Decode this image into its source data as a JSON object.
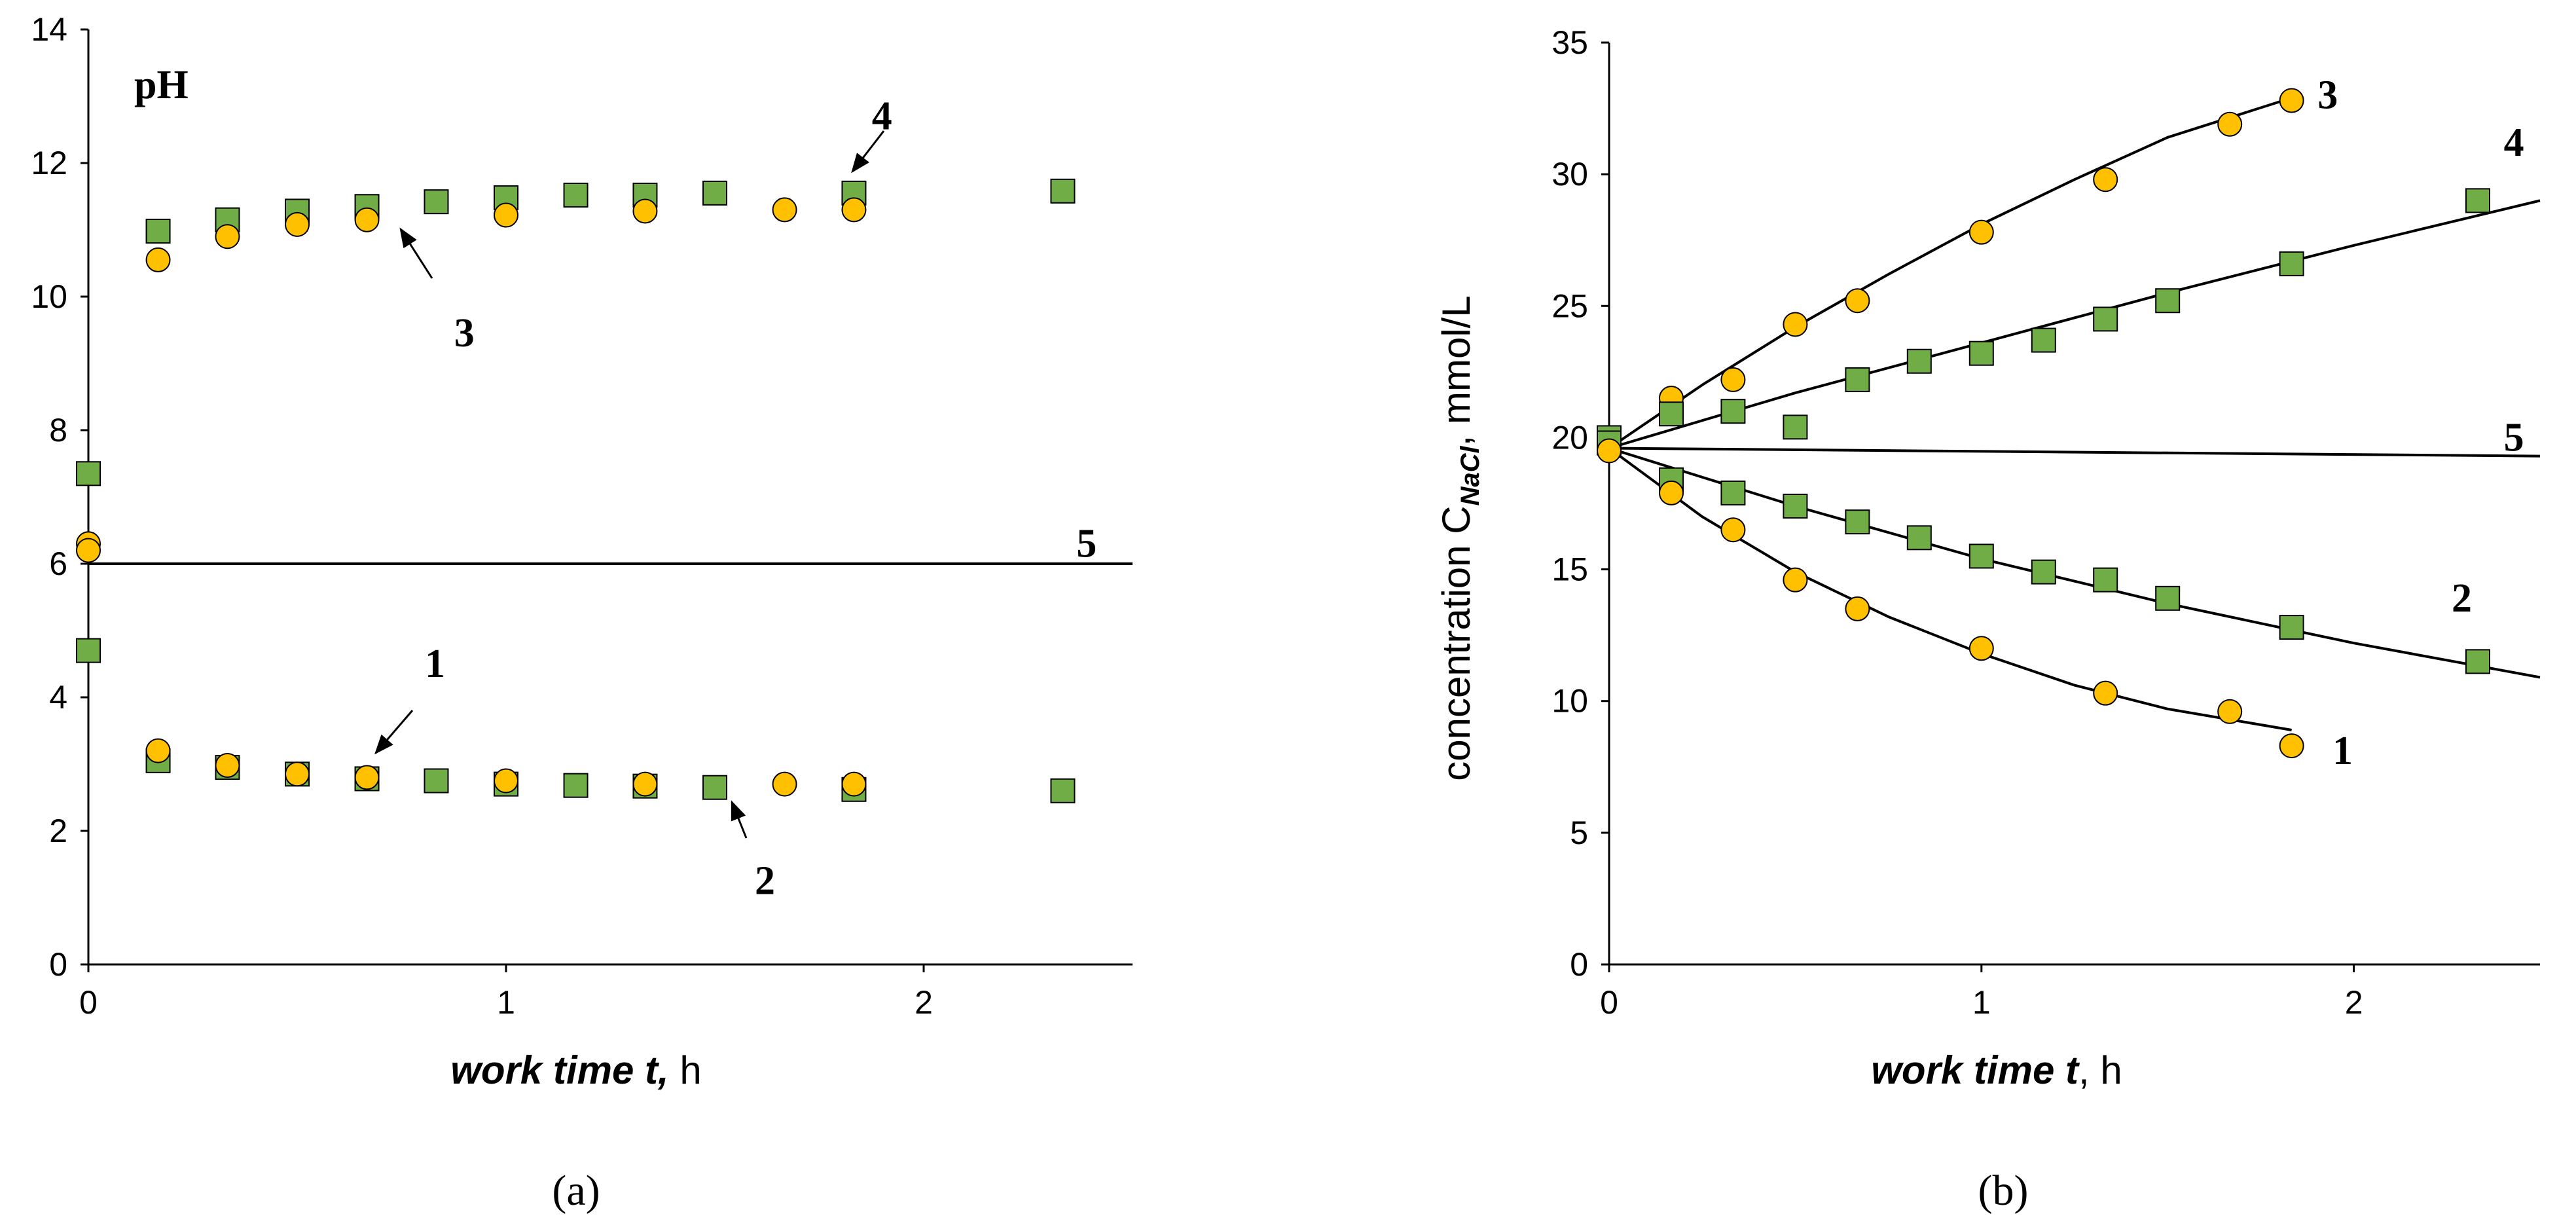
{
  "colors": {
    "circle_fill": "#ffc000",
    "square_fill": "#70ad47",
    "marker_stroke": "#000000",
    "line": "#000000"
  },
  "chart_data": [
    {
      "type": "scatter",
      "panel_label": "(a)",
      "ylabel_in_plot": "pH",
      "xlabel_italic": "work time t,",
      "xlabel_unit": " h",
      "xlim": [
        0,
        2.5
      ],
      "ylim": [
        0,
        14
      ],
      "xticks": [
        "0",
        "1",
        "2"
      ],
      "yticks": [
        "0",
        "2",
        "4",
        "6",
        "8",
        "10",
        "12",
        "14"
      ],
      "series": [
        {
          "name": "squares-acid (2)",
          "marker": "square",
          "x": [
            0,
            0.167,
            0.333,
            0.5,
            0.667,
            0.833,
            1.0,
            1.167,
            1.333,
            1.5,
            1.833,
            2.333
          ],
          "y": [
            4.7,
            3.05,
            2.95,
            2.85,
            2.78,
            2.75,
            2.7,
            2.68,
            2.67,
            2.65,
            2.62,
            2.6
          ]
        },
        {
          "name": "circles-acid (1)",
          "marker": "circle",
          "x": [
            0,
            0.167,
            0.333,
            0.5,
            0.667,
            1.0,
            1.333,
            1.667,
            1.833
          ],
          "y": [
            6.3,
            3.2,
            2.98,
            2.85,
            2.8,
            2.75,
            2.7,
            2.7,
            2.7
          ]
        },
        {
          "name": "squares-base (4)",
          "marker": "square",
          "x": [
            0,
            0.167,
            0.333,
            0.5,
            0.667,
            0.833,
            1.0,
            1.167,
            1.333,
            1.5,
            1.833,
            2.333
          ],
          "y": [
            7.35,
            10.98,
            11.15,
            11.28,
            11.35,
            11.42,
            11.48,
            11.52,
            11.52,
            11.55,
            11.55,
            11.58
          ]
        },
        {
          "name": "circles-base (3)",
          "marker": "circle",
          "x": [
            0,
            0.167,
            0.333,
            0.5,
            0.667,
            1.0,
            1.333,
            1.667,
            1.833
          ],
          "y": [
            6.2,
            10.55,
            10.9,
            11.08,
            11.15,
            11.22,
            11.28,
            11.3,
            11.3
          ]
        },
        {
          "name": "line-5",
          "marker": "line",
          "x": [
            0,
            2.5
          ],
          "y": [
            6.0,
            6.0
          ]
        }
      ],
      "annotations": [
        {
          "text": "1",
          "x": 0.83,
          "y": 4.5
        },
        {
          "text": "2",
          "x": 1.62,
          "y": 1.25
        },
        {
          "text": "3",
          "x": 0.9,
          "y": 9.45
        },
        {
          "text": "4",
          "x": 1.9,
          "y": 12.7
        },
        {
          "text": "5",
          "x": 2.39,
          "y": 6.3
        }
      ]
    },
    {
      "type": "scatter",
      "panel_label": "(b)",
      "ylabel_main": "concentration C",
      "ylabel_sub": "NaCl",
      "ylabel_unit": ", mmol/L",
      "xlabel_italic": "work time t",
      "xlabel_unit": ", h",
      "xlim": [
        0,
        2.5
      ],
      "ylim": [
        0,
        35
      ],
      "xticks": [
        "0",
        "1",
        "2"
      ],
      "yticks": [
        "0",
        "5",
        "10",
        "15",
        "20",
        "25",
        "30",
        "35"
      ],
      "series": [
        {
          "name": "circles-3",
          "marker": "circle",
          "x": [
            0,
            0.167,
            0.333,
            0.5,
            0.667,
            1.0,
            1.333,
            1.667,
            1.833
          ],
          "y": [
            20.0,
            21.5,
            22.2,
            24.3,
            25.2,
            27.8,
            29.8,
            31.9,
            32.8
          ]
        },
        {
          "name": "squares-4",
          "marker": "square",
          "x": [
            0,
            0.167,
            0.333,
            0.5,
            0.667,
            0.833,
            1.0,
            1.167,
            1.333,
            1.5,
            1.833,
            2.333
          ],
          "y": [
            20.0,
            20.9,
            21.0,
            20.4,
            22.2,
            22.9,
            23.2,
            23.7,
            24.5,
            25.2,
            26.6,
            29.0
          ]
        },
        {
          "name": "squares-2",
          "marker": "square",
          "x": [
            0,
            0.167,
            0.333,
            0.5,
            0.667,
            0.833,
            1.0,
            1.167,
            1.333,
            1.5,
            1.833,
            2.333
          ],
          "y": [
            19.8,
            18.4,
            17.9,
            17.4,
            16.8,
            16.2,
            15.5,
            14.9,
            14.6,
            13.9,
            12.8,
            11.5
          ]
        },
        {
          "name": "circles-1",
          "marker": "circle",
          "x": [
            0,
            0.167,
            0.333,
            0.5,
            0.667,
            1.0,
            1.333,
            1.667,
            1.833
          ],
          "y": [
            19.5,
            17.9,
            16.5,
            14.6,
            13.5,
            12.0,
            10.3,
            9.6,
            8.3
          ]
        },
        {
          "name": "fit-3",
          "marker": "line",
          "x": [
            0,
            0.25,
            0.5,
            0.75,
            1.0,
            1.25,
            1.5,
            1.833
          ],
          "y": [
            19.6,
            22.0,
            24.2,
            26.2,
            28.1,
            29.8,
            31.4,
            32.9
          ]
        },
        {
          "name": "fit-4",
          "marker": "line",
          "x": [
            0,
            0.5,
            1.0,
            1.5,
            2.0,
            2.5
          ],
          "y": [
            19.6,
            21.7,
            23.6,
            25.5,
            27.3,
            29.0
          ]
        },
        {
          "name": "fit-5",
          "marker": "line",
          "x": [
            0,
            2.5
          ],
          "y": [
            19.6,
            19.3
          ]
        },
        {
          "name": "fit-2",
          "marker": "line",
          "x": [
            0,
            0.5,
            1.0,
            1.5,
            2.0,
            2.5
          ],
          "y": [
            19.6,
            17.4,
            15.4,
            13.7,
            12.2,
            10.9
          ]
        },
        {
          "name": "fit-1",
          "marker": "line",
          "x": [
            0,
            0.25,
            0.5,
            0.75,
            1.0,
            1.25,
            1.5,
            1.833
          ],
          "y": [
            19.6,
            17.0,
            14.9,
            13.2,
            11.8,
            10.6,
            9.7,
            8.9
          ]
        }
      ],
      "annotations": [
        {
          "text": "3",
          "x": 1.93,
          "y": 33.0
        },
        {
          "text": "4",
          "x": 2.43,
          "y": 31.2
        },
        {
          "text": "5",
          "x": 2.43,
          "y": 20.0
        },
        {
          "text": "2",
          "x": 2.29,
          "y": 13.9
        },
        {
          "text": "1",
          "x": 1.97,
          "y": 8.1
        }
      ]
    }
  ]
}
